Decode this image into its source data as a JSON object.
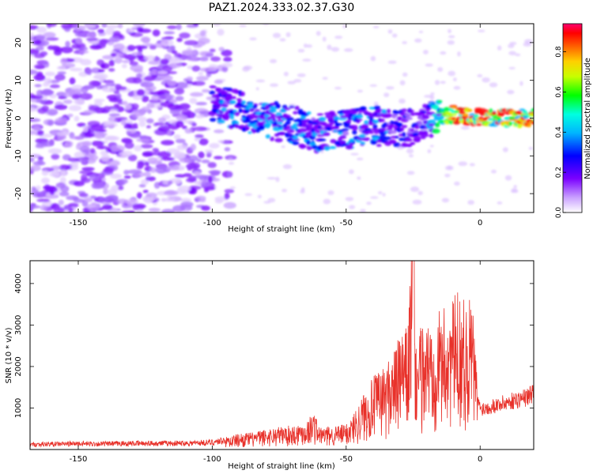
{
  "figure": {
    "title": "PAZ1.2024.333.02.37.G30"
  },
  "chart_data": [
    {
      "type": "heatmap",
      "xlabel": "Height of straight line (km)",
      "ylabel": "Frequency (Hz)",
      "xlim": [
        -168,
        20
      ],
      "ylim": [
        -25,
        25
      ],
      "x_ticks": [
        -150,
        -100,
        -50,
        0
      ],
      "y_ticks": [
        -20,
        -10,
        0,
        10,
        20
      ],
      "colorbar": {
        "label": "Normalized spectral amplitude",
        "range": [
          0,
          0.94
        ],
        "ticks": [
          "0.0",
          "0.2",
          "0.4",
          "0.6",
          "0.8"
        ],
        "colormap": [
          "#ffffff",
          "#9a00ff",
          "#0000ff",
          "#00e5ff",
          "#00ff00",
          "#ffff00",
          "#ff0000",
          "#ff0060"
        ]
      },
      "ridge": {
        "description_points_x": [
          -100,
          -90,
          -80,
          -70,
          -60,
          -50,
          -40,
          -30,
          -20,
          -15,
          -10,
          0,
          10,
          20
        ],
        "center_frequency_hz": [
          4,
          2,
          0,
          -2,
          -4,
          -3,
          -2,
          -3,
          -1,
          0,
          1,
          0,
          0,
          0
        ],
        "peak_amplitude": [
          0.25,
          0.3,
          0.3,
          0.3,
          0.28,
          0.28,
          0.3,
          0.25,
          0.22,
          0.55,
          0.85,
          0.88,
          0.82,
          0.8
        ]
      }
    },
    {
      "type": "line",
      "xlabel": "Height of straight line (km)",
      "ylabel": "SNR (10 * v/v)",
      "xlim": [
        -168,
        20
      ],
      "ylim": [
        0,
        4550
      ],
      "x_ticks": [
        -150,
        -100,
        -50,
        0
      ],
      "y_ticks": [
        1000,
        2000,
        3000,
        4000
      ],
      "line_color": "#e8312a",
      "series": [
        {
          "x": [
            -168,
            -160,
            -150,
            -140,
            -130,
            -120,
            -110,
            -100,
            -95,
            -90,
            -85,
            -80,
            -75,
            -70,
            -65,
            -62,
            -60,
            -55,
            -50,
            -48,
            -45,
            -42,
            -40,
            -35,
            -32,
            -30,
            -27,
            -25,
            -24,
            -22,
            -20,
            -18,
            -15,
            -12,
            -10,
            -8,
            -5,
            -3,
            -1,
            0,
            3,
            6,
            9,
            12,
            15,
            18,
            20
          ],
          "y": [
            120,
            130,
            140,
            135,
            145,
            150,
            150,
            170,
            230,
            300,
            320,
            380,
            430,
            450,
            520,
            720,
            420,
            430,
            480,
            600,
            900,
            1200,
            1350,
            1600,
            1900,
            2100,
            2300,
            4550,
            2000,
            2300,
            2400,
            2500,
            2600,
            2700,
            2800,
            3000,
            2700,
            2900,
            1300,
            1000,
            1050,
            1100,
            1150,
            1200,
            1250,
            1300,
            1450
          ]
        }
      ]
    }
  ]
}
